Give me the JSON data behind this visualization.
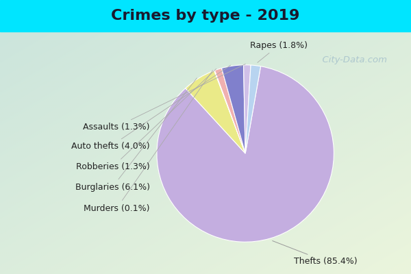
{
  "title": "Crimes by type - 2019",
  "labels": [
    "Thefts",
    "Burglaries",
    "Murders",
    "Robberies",
    "Auto thefts",
    "Assaults",
    "Rapes"
  ],
  "percentages": [
    85.4,
    6.1,
    0.1,
    1.3,
    4.0,
    1.3,
    1.8
  ],
  "colors": [
    "#c4aee0",
    "#e8e87a",
    "#f0f0d0",
    "#f0b8b8",
    "#7b7bcc",
    "#d4bce8",
    "#b8d4f0"
  ],
  "label_texts": [
    "Thefts (85.4%)",
    "Burglaries (6.1%)",
    "Murders (0.1%)",
    "Robberies (1.3%)",
    "Auto thefts (4.0%)",
    "Assaults (1.3%)",
    "Rapes (1.8%)"
  ],
  "title_fontsize": 16,
  "label_fontsize": 9,
  "watermark": "  City-Data.com"
}
